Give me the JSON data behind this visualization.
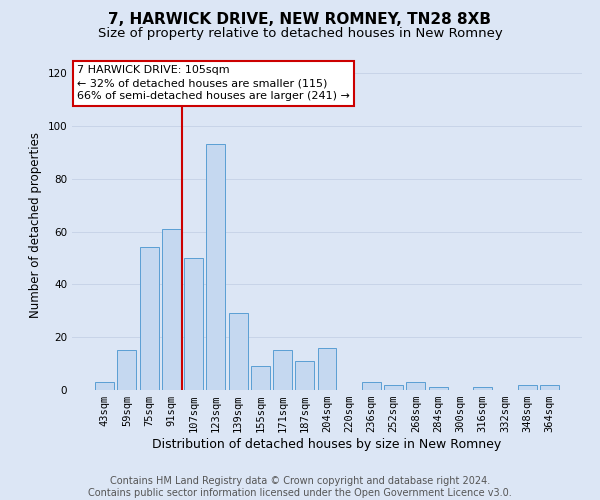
{
  "title": "7, HARWICK DRIVE, NEW ROMNEY, TN28 8XB",
  "subtitle": "Size of property relative to detached houses in New Romney",
  "xlabel": "Distribution of detached houses by size in New Romney",
  "ylabel": "Number of detached properties",
  "footer_line1": "Contains HM Land Registry data © Crown copyright and database right 2024.",
  "footer_line2": "Contains public sector information licensed under the Open Government Licence v3.0.",
  "categories": [
    "43sqm",
    "59sqm",
    "75sqm",
    "91sqm",
    "107sqm",
    "123sqm",
    "139sqm",
    "155sqm",
    "171sqm",
    "187sqm",
    "204sqm",
    "220sqm",
    "236sqm",
    "252sqm",
    "268sqm",
    "284sqm",
    "300sqm",
    "316sqm",
    "332sqm",
    "348sqm",
    "364sqm"
  ],
  "values": [
    3,
    15,
    54,
    61,
    50,
    93,
    29,
    9,
    15,
    11,
    16,
    0,
    3,
    2,
    3,
    1,
    0,
    1,
    0,
    2,
    2
  ],
  "bar_color": "#c5d8f0",
  "bar_edge_color": "#5a9fd4",
  "red_line_x": 3.5,
  "red_line_label": "7 HARWICK DRIVE: 105sqm",
  "annotation_line2": "← 32% of detached houses are smaller (115)",
  "annotation_line3": "66% of semi-detached houses are larger (241) →",
  "annotation_box_facecolor": "#ffffff",
  "annotation_box_edgecolor": "#cc0000",
  "red_line_color": "#cc0000",
  "ylim": [
    0,
    125
  ],
  "yticks": [
    0,
    20,
    40,
    60,
    80,
    100,
    120
  ],
  "grid_color": "#c8d4e8",
  "bg_color": "#dce6f5",
  "title_fontsize": 11,
  "subtitle_fontsize": 9.5,
  "xlabel_fontsize": 9,
  "ylabel_fontsize": 8.5,
  "tick_fontsize": 7.5,
  "ann_fontsize": 8,
  "footer_fontsize": 7
}
